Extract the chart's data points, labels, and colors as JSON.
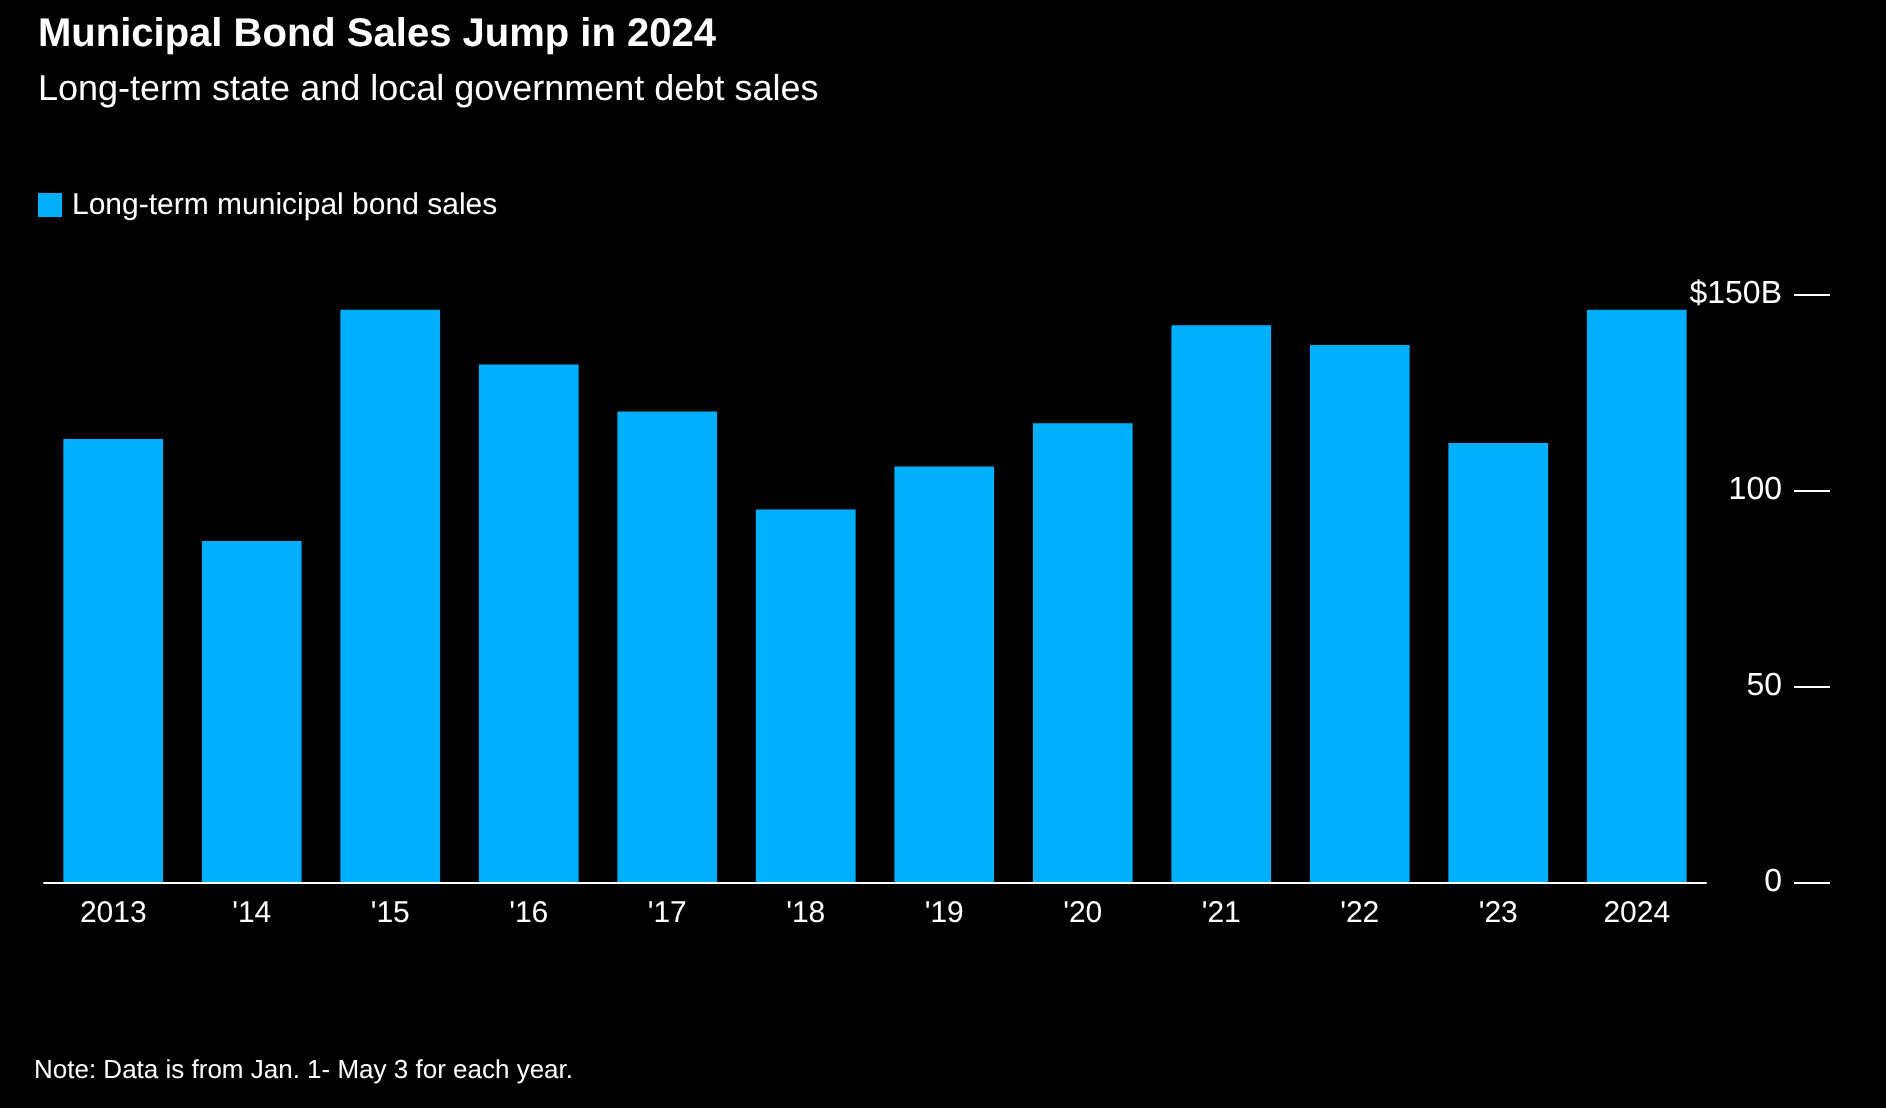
{
  "chart_data": {
    "type": "bar",
    "title": "Municipal Bond Sales Jump in 2024",
    "subtitle": "Long-term state and local government debt sales",
    "categories": [
      "2013",
      "'14",
      "'15",
      "'16",
      "'17",
      "'18",
      "'19",
      "'20",
      "'21",
      "'22",
      "'23",
      "2024"
    ],
    "series": [
      {
        "name": "Long-term municipal bond sales",
        "color": "#00b0ff",
        "values": [
          113,
          87,
          146,
          132,
          120,
          95,
          106,
          117,
          142,
          137,
          112,
          146
        ]
      }
    ],
    "ylim": [
      0,
      150
    ],
    "yticks": [
      0,
      50,
      100,
      {
        "value": 150,
        "label": "$150B"
      }
    ],
    "grid": false,
    "legend": "top left",
    "annotations": [
      "Note: Data is from Jan. 1- May 3 for each year."
    ]
  }
}
